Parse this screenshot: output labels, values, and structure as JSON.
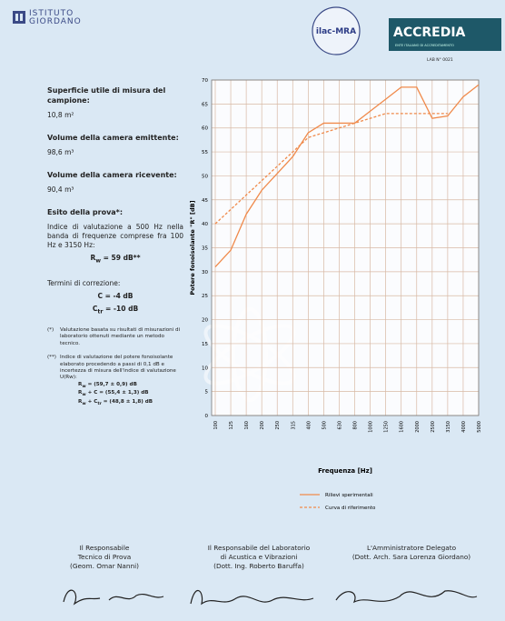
{
  "header": {
    "logo_line1": "ISTITUTO",
    "logo_line2": "GIORDANO",
    "ilac_logo": "ilac-MRA",
    "accredia_logo": "ACCREDIA",
    "accredia_subtitle": "ENTE ITALIANO DI ACCREDITAMENTO",
    "lab_number": "LAB N° 0021"
  },
  "details": [
    {
      "label": "Superficie utile di misura del campione:",
      "value": "10,8 m²"
    },
    {
      "label": "Volume della camera emittente:",
      "value": "98,6 m³"
    },
    {
      "label": "Volume della camera ricevente:",
      "value": "90,4 m³"
    }
  ],
  "result": {
    "label": "Esito della prova*:",
    "text": "Indice di valutazione a 500 Hz nella banda di frequenze comprese fra 100 Hz e 3150 Hz:",
    "rating": [
      {
        "text": "R"
      },
      {
        "sub": "w"
      },
      {
        "text": " = 59 dB**"
      }
    ]
  },
  "corrections": {
    "label": "Termini di correzione:",
    "items": [
      [
        {
          "text": "C = -4 dB"
        }
      ],
      [
        {
          "text": "C"
        },
        {
          "sub": "tr"
        },
        {
          "text": " = -10 dB"
        }
      ]
    ]
  },
  "notes": [
    {
      "mark": "(*)",
      "text": "Valutazione basata su risultati di misurazioni di laboratorio ottenuti mediante un metodo tecnico."
    },
    {
      "mark": "(**)",
      "text": "Indice di valutazione del potere fonoisolante elaborato procedendo a passi di 0,1 dB e incertezza di misura dell'indice di valutazione U(Rw):",
      "formulas": [
        [
          {
            "text": "R"
          },
          {
            "sub": "w"
          },
          {
            "text": " = (59,7 ± 0,9) dB"
          }
        ],
        [
          {
            "text": "R"
          },
          {
            "sub": "w"
          },
          {
            "text": " + C = (55,4 ± 1,3) dB"
          }
        ],
        [
          {
            "text": "R"
          },
          {
            "sub": "w"
          },
          {
            "text": " + C"
          },
          {
            "sub": "tr"
          },
          {
            "text": " = (48,8 ± 1,8) dB"
          }
        ]
      ]
    }
  ],
  "chart_data": {
    "type": "line",
    "xlabel": "Frequenza [Hz]",
    "ylabel": "Potere fonoisolante \"R\" [dB]",
    "categories": [
      "100",
      "125",
      "160",
      "200",
      "250",
      "315",
      "400",
      "500",
      "630",
      "800",
      "1000",
      "1250",
      "1600",
      "2000",
      "2500",
      "3150",
      "4000",
      "5000"
    ],
    "series": [
      {
        "name": "Rilievi sperimentali",
        "color": "#f08a4b",
        "style": "solid",
        "values": [
          31,
          34.5,
          42,
          47,
          50.5,
          54,
          59,
          61,
          61,
          61,
          63.5,
          66,
          68.5,
          68.5,
          62,
          62.5,
          66.5,
          69
        ]
      },
      {
        "name": "Curva di riferimento",
        "color": "#f08a4b",
        "style": "dashed",
        "values": [
          40,
          43,
          46,
          49,
          52,
          55,
          58,
          59,
          60,
          61,
          62,
          63,
          63,
          63,
          63,
          63,
          null,
          null
        ]
      }
    ],
    "ylim": [
      0,
      70
    ],
    "yticks": [
      0,
      5,
      10,
      15,
      20,
      25,
      30,
      35,
      40,
      45,
      50,
      55,
      60,
      65,
      70
    ],
    "grid": true
  },
  "signatures": [
    {
      "lines": [
        "Il Responsabile",
        "Tecnico di Prova",
        "(Geom. Omar Nanni)"
      ]
    },
    {
      "lines": [
        "Il Responsabile del Laboratorio",
        "di Acustica e Vibrazioni",
        "(Dott. Ing. Roberto Baruffa)"
      ]
    },
    {
      "lines": [
        "L'Amministratore Delegato",
        "(Dott. Arch. Sara Lorenza Giordano)"
      ]
    }
  ]
}
